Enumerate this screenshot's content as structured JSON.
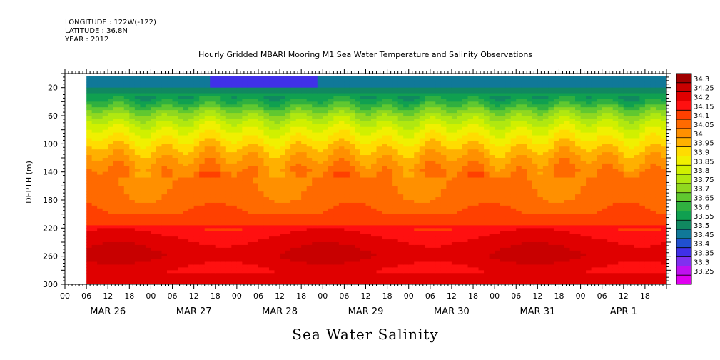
{
  "header": {
    "longitude": "LONGITUDE : 122W(-122)",
    "latitude": "LATITUDE : 36.8N",
    "year": "YEAR : 2012",
    "title": "Hourly Gridded MBARI Mooring M1 Sea Water Temperature and Salinity Observations"
  },
  "footer": {
    "title": "Sea Water Salinity"
  },
  "chart_data": {
    "type": "heatmap",
    "variable": "Sea Water Salinity",
    "ylabel": "DEPTH (m)",
    "y_axis": {
      "range": [
        0,
        300
      ],
      "inverted": true,
      "ticks": [
        20,
        60,
        100,
        140,
        180,
        220,
        260,
        300
      ]
    },
    "x_axis": {
      "range_hours": [
        0,
        168
      ],
      "hour_tick_labels": [
        "00",
        "06",
        "12",
        "18",
        "00",
        "06",
        "12",
        "18",
        "00",
        "06",
        "12",
        "18",
        "00",
        "06",
        "12",
        "18",
        "00",
        "06",
        "12",
        "18",
        "00",
        "06",
        "12",
        "18",
        "00",
        "06",
        "12",
        "18"
      ],
      "date_labels": [
        "MAR 26",
        "MAR 27",
        "MAR 28",
        "MAR 29",
        "MAR 30",
        "MAR 31",
        "APR  1"
      ],
      "data_start_hour": 6
    },
    "colorbar": {
      "levels": [
        "34.3",
        "34.25",
        "34.2",
        "34.15",
        "34.1",
        "34.05",
        "34",
        "33.95",
        "33.9",
        "33.85",
        "33.8",
        "33.75",
        "33.7",
        "33.65",
        "33.6",
        "33.55",
        "33.5",
        "33.45",
        "33.4",
        "33.35",
        "33.3",
        "33.25"
      ],
      "colors": [
        "#a00000",
        "#c80000",
        "#e00000",
        "#ff1010",
        "#ff4000",
        "#ff6a00",
        "#ff9000",
        "#ffb000",
        "#ffdc00",
        "#f0f000",
        "#d0f000",
        "#b0e810",
        "#90d820",
        "#60c830",
        "#30b040",
        "#10a050",
        "#108860",
        "#107898",
        "#2050d0",
        "#4030e8",
        "#8030f0",
        "#c010f0",
        "#e000f0"
      ]
    },
    "depth_profile_mean": [
      {
        "depth": 5,
        "value": 33.45
      },
      {
        "depth": 20,
        "value": 33.5
      },
      {
        "depth": 40,
        "value": 33.6
      },
      {
        "depth": 60,
        "value": 33.75
      },
      {
        "depth": 80,
        "value": 33.85
      },
      {
        "depth": 100,
        "value": 33.93
      },
      {
        "depth": 120,
        "value": 34.0
      },
      {
        "depth": 140,
        "value": 34.05
      },
      {
        "depth": 180,
        "value": 34.07
      },
      {
        "depth": 200,
        "value": 34.1
      },
      {
        "depth": 220,
        "value": 34.17
      },
      {
        "depth": 240,
        "value": 34.22
      },
      {
        "depth": 260,
        "value": 34.25
      },
      {
        "depth": 280,
        "value": 34.2
      },
      {
        "depth": 300,
        "value": 34.2
      }
    ]
  }
}
